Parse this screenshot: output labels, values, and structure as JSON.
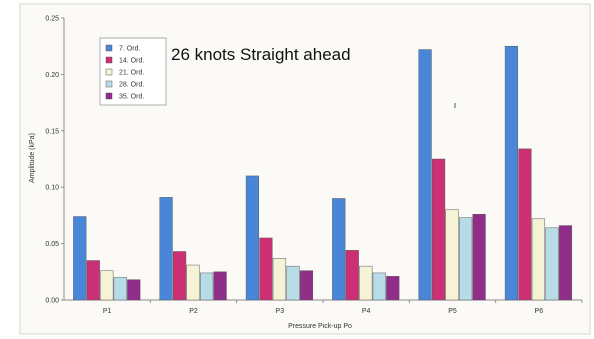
{
  "chart_data": {
    "type": "bar",
    "annotation": "26 knots Straight ahead",
    "xlabel": "Pressure Pick-up Po",
    "ylabel": "Amplitude (kPa)",
    "categories": [
      "P1",
      "P2",
      "P3",
      "P4",
      "P5",
      "P6"
    ],
    "ylim": [
      0,
      0.25
    ],
    "yticks": [
      0.0,
      0.05,
      0.1,
      0.15,
      0.2,
      0.25
    ],
    "ytick_labels": [
      "0.00",
      "0.05",
      "0.10",
      "0.15",
      "0.20",
      "0.25"
    ],
    "grid": false,
    "legend_position": "top-left",
    "series": [
      {
        "name": "7. Ord.",
        "color": "#4a86d8",
        "values": [
          0.074,
          0.091,
          0.11,
          0.09,
          0.222,
          0.225
        ]
      },
      {
        "name": "14. Ord.",
        "color": "#cc2f74",
        "values": [
          0.035,
          0.043,
          0.055,
          0.044,
          0.125,
          0.134
        ]
      },
      {
        "name": "21. Ord.",
        "color": "#f6f2d6",
        "values": [
          0.026,
          0.031,
          0.037,
          0.03,
          0.08,
          0.072
        ]
      },
      {
        "name": "28. Ord.",
        "color": "#b8dbe8",
        "values": [
          0.02,
          0.024,
          0.03,
          0.024,
          0.073,
          0.064
        ]
      },
      {
        "name": "35. Ord.",
        "color": "#8f2d88",
        "values": [
          0.018,
          0.025,
          0.026,
          0.021,
          0.076,
          0.066
        ]
      }
    ]
  }
}
